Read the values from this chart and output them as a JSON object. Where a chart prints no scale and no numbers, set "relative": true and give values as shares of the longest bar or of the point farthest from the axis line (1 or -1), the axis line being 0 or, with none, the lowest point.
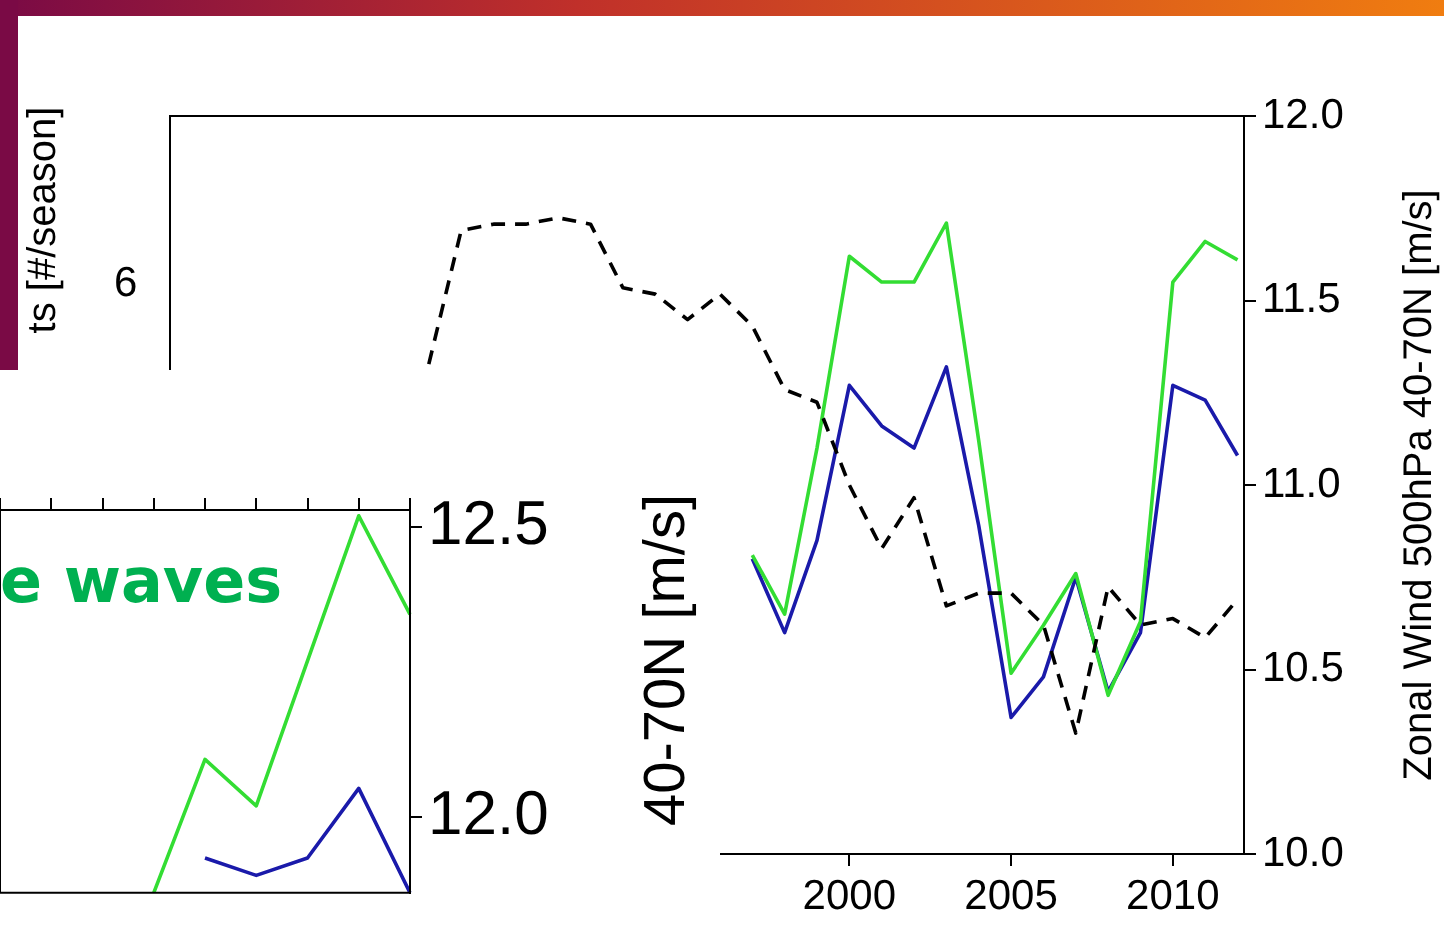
{
  "chart_data": [
    {
      "type": "line",
      "y2label": "Zonal Wind 500hPa 40-70N [m/s]",
      "xlim": [
        1979,
        2012.2
      ],
      "xticks": [
        2000,
        2005,
        2010
      ],
      "y2lim": [
        10,
        12
      ],
      "y2ticks": [
        {
          "value": 10,
          "label": "10.0"
        },
        {
          "value": 10.5,
          "label": "10.5"
        },
        {
          "value": 11,
          "label": "11.0"
        },
        {
          "value": 11.5,
          "label": "11.5"
        },
        {
          "value": 12,
          "label": "12.0"
        }
      ],
      "grid": false,
      "legend": false,
      "marker": "none",
      "series": [
        {
          "color": "#33dd33",
          "axis": "y2",
          "line_style": "solid",
          "x": [
            1997,
            1998,
            1999,
            2000,
            2001,
            2002,
            2003,
            2004,
            2005,
            2006,
            2007,
            2008,
            2009,
            2010,
            2011,
            2012
          ],
          "values": [
            10.81,
            10.65,
            11.1,
            11.62,
            11.55,
            11.55,
            11.71,
            11.12,
            10.49,
            10.62,
            10.76,
            10.43,
            10.63,
            11.55,
            11.66,
            11.61
          ]
        },
        {
          "color": "#1a1aaa",
          "axis": "y2",
          "line_style": "solid",
          "x": [
            1997,
            1998,
            1999,
            2000,
            2001,
            2002,
            2003,
            2004,
            2005,
            2006,
            2007,
            2008,
            2009,
            2010,
            2011,
            2012
          ],
          "values": [
            10.8,
            10.6,
            10.85,
            11.27,
            11.16,
            11.1,
            11.32,
            10.89,
            10.37,
            10.48,
            10.75,
            10.44,
            10.6,
            11.27,
            11.23,
            11.08
          ]
        }
      ]
    },
    {
      "type": "line",
      "ylabel": "40-70N [m/s]",
      "annotations": [
        "e waves"
      ],
      "categories": [
        null,
        null,
        null,
        null,
        null,
        null,
        null,
        null,
        null
      ],
      "ylim": [
        11.87,
        12.53
      ],
      "yticks": [
        {
          "value": 12,
          "label": "12.0"
        },
        {
          "value": 12.5,
          "label": "12.5"
        }
      ],
      "tick_labels": "y",
      "grid": false,
      "legend": false,
      "marker": "none",
      "series": [
        {
          "color": "#33dd33",
          "line_style": "solid",
          "values": [
            null,
            null,
            null,
            11.87,
            12.1,
            12.02,
            12.27,
            12.52,
            12.35
          ]
        },
        {
          "color": "#1a1aaa",
          "line_style": "solid",
          "values": [
            null,
            null,
            null,
            null,
            11.93,
            11.9,
            11.93,
            12.05,
            11.87
          ]
        }
      ]
    },
    {
      "type": "line",
      "ylabel": "ts [#/season]",
      "annotations": [
        "6"
      ],
      "relative": true,
      "xlim": [
        1979,
        2012.2
      ],
      "tick_labels": false,
      "grid": false,
      "legend": false,
      "marker": "none",
      "series": [
        {
          "color": "#000000",
          "line_style": "dashed",
          "x": [
            1987,
            1988,
            1989,
            1990,
            1991,
            1992,
            1993,
            1994,
            1995,
            1996,
            1997,
            1998,
            1999,
            2000,
            2001,
            2002,
            2003,
            2004,
            2005,
            2006,
            2007,
            2008,
            2009,
            2010,
            2011,
            2012
          ],
          "values": [
            0.77,
            0.98,
            0.99,
            0.99,
            1,
            0.99,
            0.89,
            0.88,
            0.84,
            0.88,
            0.83,
            0.73,
            0.71,
            0.58,
            0.48,
            0.56,
            0.39,
            0.41,
            0.41,
            0.36,
            0.19,
            0.42,
            0.36,
            0.37,
            0.34,
            0.4
          ]
        }
      ]
    }
  ]
}
